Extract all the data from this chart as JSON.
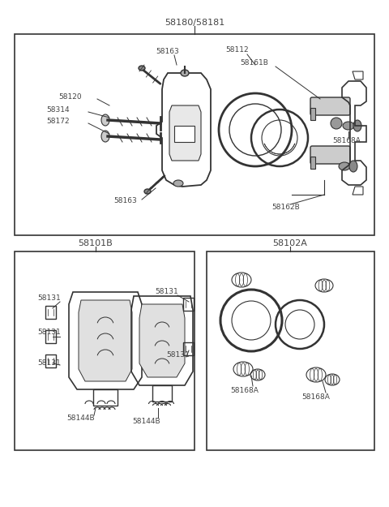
{
  "bg_color": "#ffffff",
  "line_color": "#333333",
  "text_color": "#444444",
  "font_size": 6.5,
  "title_label": "58180/58181",
  "box1_label": "58101B",
  "box2_label": "58102A",
  "figsize": [
    4.8,
    6.25
  ],
  "dpi": 100
}
